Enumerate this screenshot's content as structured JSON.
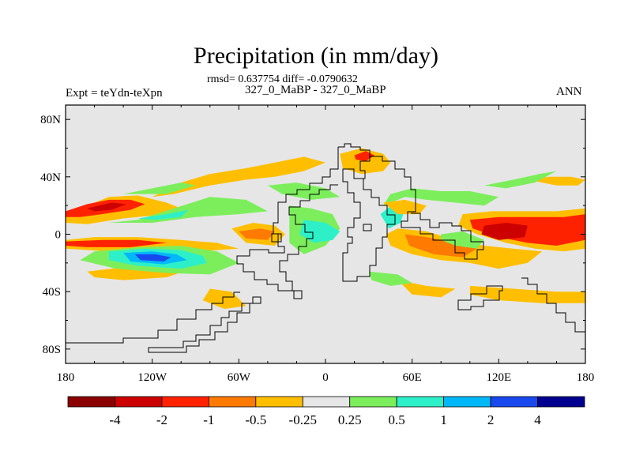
{
  "chart_data": {
    "type": "heatmap",
    "title": "Precipitation (in mm/day)",
    "stats_line": "rmsd= 0.637754 diff= -0.0790632",
    "case_line": "327_0_MaBP - 327_0_MaBP",
    "left_label": "Expt = teYdn-teXpn",
    "right_label": "ANN",
    "x_range": [
      -180,
      180
    ],
    "y_range": [
      -90,
      90
    ],
    "x_ticks": [
      {
        "value": -180,
        "label": "180"
      },
      {
        "value": -120,
        "label": "120W"
      },
      {
        "value": -60,
        "label": "60W"
      },
      {
        "value": 0,
        "label": "0"
      },
      {
        "value": 60,
        "label": "60E"
      },
      {
        "value": 120,
        "label": "120E"
      },
      {
        "value": 180,
        "label": "180"
      }
    ],
    "y_ticks": [
      {
        "value": 80,
        "label": "80N"
      },
      {
        "value": 40,
        "label": "40N"
      },
      {
        "value": 0,
        "label": "0"
      },
      {
        "value": -40,
        "label": "40S"
      },
      {
        "value": -80,
        "label": "80S"
      }
    ],
    "colorbar": {
      "colors": [
        "#8b0000",
        "#cc0000",
        "#ff2200",
        "#ff7a00",
        "#ffbf00",
        "#e6e6e6",
        "#7cee5c",
        "#2ef0c8",
        "#00b8f8",
        "#1848ee",
        "#000090"
      ],
      "labels": [
        "-4",
        "-2",
        "-1",
        "-0.5",
        "-0.25",
        "0.25",
        "0.5",
        "1",
        "2",
        "4"
      ]
    },
    "features": [
      {
        "name": "npac-orange",
        "level": 4,
        "points": [
          [
            -180,
            14
          ],
          [
            -165,
            20
          ],
          [
            -150,
            26
          ],
          [
            -130,
            27
          ],
          [
            -110,
            22
          ],
          [
            -95,
            16
          ],
          [
            -90,
            12
          ],
          [
            -110,
            14
          ],
          [
            -140,
            11
          ],
          [
            -165,
            7
          ],
          [
            -180,
            8
          ]
        ]
      },
      {
        "name": "npac-red",
        "level": 2,
        "points": [
          [
            -180,
            16
          ],
          [
            -165,
            21
          ],
          [
            -150,
            24
          ],
          [
            -135,
            24
          ],
          [
            -125,
            21
          ],
          [
            -135,
            17
          ],
          [
            -155,
            14
          ],
          [
            -170,
            12
          ],
          [
            -180,
            12
          ]
        ]
      },
      {
        "name": "npac-dark",
        "level": 1,
        "points": [
          [
            -165,
            18
          ],
          [
            -148,
            22
          ],
          [
            -138,
            21
          ],
          [
            -148,
            17
          ],
          [
            -160,
            16
          ]
        ]
      },
      {
        "name": "spac-itcz-orange",
        "level": 4,
        "points": [
          [
            -180,
            -4
          ],
          [
            -160,
            -2
          ],
          [
            -130,
            -2
          ],
          [
            -100,
            -4
          ],
          [
            -75,
            -6
          ],
          [
            -60,
            -10
          ],
          [
            -90,
            -12
          ],
          [
            -120,
            -14
          ],
          [
            -150,
            -12
          ],
          [
            -180,
            -10
          ]
        ]
      },
      {
        "name": "spac-itcz-red",
        "level": 2,
        "points": [
          [
            -180,
            -5
          ],
          [
            -155,
            -4
          ],
          [
            -130,
            -4
          ],
          [
            -110,
            -6
          ],
          [
            -135,
            -9
          ],
          [
            -165,
            -9
          ],
          [
            -180,
            -8
          ]
        ]
      },
      {
        "name": "spcz-orange",
        "level": 4,
        "points": [
          [
            -165,
            -26
          ],
          [
            -140,
            -23
          ],
          [
            -115,
            -22
          ],
          [
            -95,
            -25
          ],
          [
            -110,
            -30
          ],
          [
            -140,
            -32
          ],
          [
            -160,
            -30
          ]
        ]
      },
      {
        "name": "pac-green",
        "level": 6,
        "points": [
          [
            -160,
            -12
          ],
          [
            -130,
            -9
          ],
          [
            -100,
            -8
          ],
          [
            -75,
            -12
          ],
          [
            -60,
            -20
          ],
          [
            -80,
            -28
          ],
          [
            -110,
            -27
          ],
          [
            -145,
            -24
          ],
          [
            -170,
            -18
          ]
        ]
      },
      {
        "name": "pac-cyan",
        "level": 7,
        "points": [
          [
            -150,
            -12
          ],
          [
            -125,
            -10
          ],
          [
            -100,
            -11
          ],
          [
            -85,
            -15
          ],
          [
            -82,
            -20
          ],
          [
            -100,
            -24
          ],
          [
            -130,
            -22
          ],
          [
            -150,
            -18
          ]
        ]
      },
      {
        "name": "pac-lightblue",
        "level": 8,
        "points": [
          [
            -140,
            -13
          ],
          [
            -120,
            -12
          ],
          [
            -103,
            -14
          ],
          [
            -96,
            -18
          ],
          [
            -112,
            -21
          ],
          [
            -135,
            -19
          ]
        ]
      },
      {
        "name": "pac-blue",
        "level": 9,
        "points": [
          [
            -132,
            -14
          ],
          [
            -118,
            -14
          ],
          [
            -107,
            -16
          ],
          [
            -112,
            -19
          ],
          [
            -128,
            -18
          ]
        ]
      },
      {
        "name": "npac-green",
        "level": 6,
        "points": [
          [
            -150,
            8
          ],
          [
            -130,
            10
          ],
          [
            -105,
            18
          ],
          [
            -80,
            26
          ],
          [
            -55,
            24
          ],
          [
            -40,
            16
          ],
          [
            -60,
            14
          ],
          [
            -90,
            12
          ],
          [
            -120,
            8
          ]
        ]
      },
      {
        "name": "npac-cyan",
        "level": 7,
        "points": [
          [
            -130,
            11
          ],
          [
            -110,
            14
          ],
          [
            -95,
            17
          ],
          [
            -100,
            12
          ],
          [
            -118,
            10
          ]
        ]
      },
      {
        "name": "natl-orange-band",
        "level": 4,
        "points": [
          [
            -120,
            26
          ],
          [
            -100,
            36
          ],
          [
            -80,
            42
          ],
          [
            -55,
            46
          ],
          [
            -35,
            50
          ],
          [
            -15,
            54
          ],
          [
            0,
            50
          ],
          [
            -15,
            44
          ],
          [
            -35,
            40
          ],
          [
            -55,
            38
          ],
          [
            -80,
            34
          ],
          [
            -105,
            28
          ]
        ]
      },
      {
        "name": "natl-green",
        "level": 6,
        "points": [
          [
            -140,
            28
          ],
          [
            -120,
            32
          ],
          [
            -100,
            36
          ],
          [
            -90,
            34
          ],
          [
            -110,
            28
          ]
        ]
      },
      {
        "name": "africa-orange",
        "level": 4,
        "points": [
          [
            10,
            56
          ],
          [
            25,
            60
          ],
          [
            40,
            56
          ],
          [
            45,
            50
          ],
          [
            40,
            44
          ],
          [
            25,
            42
          ],
          [
            12,
            46
          ]
        ]
      },
      {
        "name": "africa-red",
        "level": 2,
        "points": [
          [
            20,
            55
          ],
          [
            28,
            58
          ],
          [
            34,
            55
          ],
          [
            28,
            51
          ],
          [
            21,
            52
          ]
        ]
      },
      {
        "name": "tropatl-orange",
        "level": 4,
        "points": [
          [
            -65,
            4
          ],
          [
            -50,
            8
          ],
          [
            -35,
            6
          ],
          [
            -28,
            0
          ],
          [
            -35,
            -8
          ],
          [
            -55,
            -6
          ]
        ]
      },
      {
        "name": "amazon-red",
        "level": 3,
        "points": [
          [
            -60,
            2
          ],
          [
            -45,
            4
          ],
          [
            -35,
            2
          ],
          [
            -40,
            -4
          ],
          [
            -55,
            -3
          ]
        ]
      },
      {
        "name": "atl-green",
        "level": 6,
        "points": [
          [
            -25,
            20
          ],
          [
            -10,
            18
          ],
          [
            5,
            14
          ],
          [
            10,
            4
          ],
          [
            0,
            -8
          ],
          [
            -15,
            -14
          ],
          [
            -25,
            -6
          ]
        ]
      },
      {
        "name": "atl-cyan",
        "level": 7,
        "points": [
          [
            -15,
            10
          ],
          [
            0,
            8
          ],
          [
            10,
            2
          ],
          [
            5,
            -4
          ],
          [
            -8,
            -6
          ],
          [
            -18,
            0
          ]
        ]
      },
      {
        "name": "io-orange-big",
        "level": 4,
        "points": [
          [
            50,
            4
          ],
          [
            70,
            2
          ],
          [
            90,
            -4
          ],
          [
            110,
            -8
          ],
          [
            130,
            -10
          ],
          [
            150,
            -12
          ],
          [
            140,
            -20
          ],
          [
            120,
            -24
          ],
          [
            100,
            -20
          ],
          [
            80,
            -18
          ],
          [
            60,
            -14
          ],
          [
            45,
            -8
          ],
          [
            42,
            0
          ]
        ]
      },
      {
        "name": "io-red",
        "level": 3,
        "points": [
          [
            55,
            0
          ],
          [
            70,
            -2
          ],
          [
            90,
            -6
          ],
          [
            105,
            -10
          ],
          [
            95,
            -16
          ],
          [
            75,
            -14
          ],
          [
            58,
            -8
          ]
        ]
      },
      {
        "name": "wpac-orange",
        "level": 4,
        "points": [
          [
            95,
            14
          ],
          [
            115,
            16
          ],
          [
            140,
            16
          ],
          [
            160,
            16
          ],
          [
            180,
            18
          ],
          [
            180,
            -10
          ],
          [
            165,
            -12
          ],
          [
            145,
            -10
          ],
          [
            125,
            -6
          ],
          [
            105,
            0
          ],
          [
            92,
            6
          ]
        ]
      },
      {
        "name": "wpac-red",
        "level": 2,
        "points": [
          [
            100,
            10
          ],
          [
            120,
            12
          ],
          [
            145,
            12
          ],
          [
            165,
            12
          ],
          [
            180,
            14
          ],
          [
            180,
            -4
          ],
          [
            160,
            -8
          ],
          [
            140,
            -6
          ],
          [
            120,
            -2
          ],
          [
            102,
            4
          ]
        ]
      },
      {
        "name": "wpac-dark",
        "level": 1,
        "points": [
          [
            110,
            6
          ],
          [
            125,
            8
          ],
          [
            140,
            6
          ],
          [
            138,
            -2
          ],
          [
            120,
            -4
          ],
          [
            108,
            0
          ]
        ]
      },
      {
        "name": "india-green",
        "level": 6,
        "points": [
          [
            40,
            20
          ],
          [
            55,
            26
          ],
          [
            70,
            24
          ],
          [
            90,
            22
          ],
          [
            110,
            20
          ],
          [
            120,
            26
          ],
          [
            100,
            30
          ],
          [
            80,
            30
          ],
          [
            60,
            32
          ],
          [
            45,
            28
          ]
        ]
      },
      {
        "name": "india-cyan",
        "level": 7,
        "points": [
          [
            38,
            14
          ],
          [
            48,
            22
          ],
          [
            55,
            18
          ],
          [
            52,
            8
          ],
          [
            44,
            4
          ]
        ]
      },
      {
        "name": "seasia-green",
        "level": 6,
        "points": [
          [
            80,
            0
          ],
          [
            95,
            2
          ],
          [
            110,
            -4
          ],
          [
            105,
            -10
          ],
          [
            90,
            -8
          ],
          [
            80,
            -4
          ]
        ]
      },
      {
        "name": "asia-orange",
        "level": 4,
        "points": [
          [
            40,
            22
          ],
          [
            55,
            24
          ],
          [
            70,
            20
          ],
          [
            65,
            14
          ],
          [
            50,
            14
          ]
        ]
      },
      {
        "name": "so-orange",
        "level": 4,
        "points": [
          [
            100,
            -36
          ],
          [
            130,
            -38
          ],
          [
            160,
            -40
          ],
          [
            180,
            -40
          ],
          [
            180,
            -48
          ],
          [
            150,
            -48
          ],
          [
            120,
            -46
          ],
          [
            100,
            -42
          ]
        ]
      },
      {
        "name": "sio-orange",
        "level": 4,
        "points": [
          [
            50,
            -32
          ],
          [
            70,
            -36
          ],
          [
            90,
            -38
          ],
          [
            80,
            -44
          ],
          [
            60,
            -42
          ]
        ]
      },
      {
        "name": "nwpac-orange",
        "level": 4,
        "points": [
          [
            140,
            38
          ],
          [
            155,
            40
          ],
          [
            170,
            40
          ],
          [
            180,
            38
          ],
          [
            175,
            34
          ],
          [
            160,
            34
          ]
        ]
      },
      {
        "name": "nwpac-green",
        "level": 6,
        "points": [
          [
            110,
            34
          ],
          [
            130,
            38
          ],
          [
            148,
            42
          ],
          [
            160,
            44
          ],
          [
            145,
            36
          ],
          [
            125,
            32
          ]
        ]
      },
      {
        "name": "natl-green2",
        "level": 6,
        "points": [
          [
            -40,
            34
          ],
          [
            -20,
            36
          ],
          [
            0,
            32
          ],
          [
            10,
            26
          ],
          [
            -10,
            24
          ],
          [
            -30,
            28
          ]
        ]
      },
      {
        "name": "sam-orange",
        "level": 4,
        "points": [
          [
            -80,
            -38
          ],
          [
            -65,
            -40
          ],
          [
            -55,
            -50
          ],
          [
            -70,
            -52
          ],
          [
            -85,
            -46
          ]
        ]
      },
      {
        "name": "safr-green",
        "level": 6,
        "points": [
          [
            30,
            -26
          ],
          [
            50,
            -28
          ],
          [
            60,
            -34
          ],
          [
            45,
            -36
          ],
          [
            32,
            -32
          ]
        ]
      }
    ]
  }
}
